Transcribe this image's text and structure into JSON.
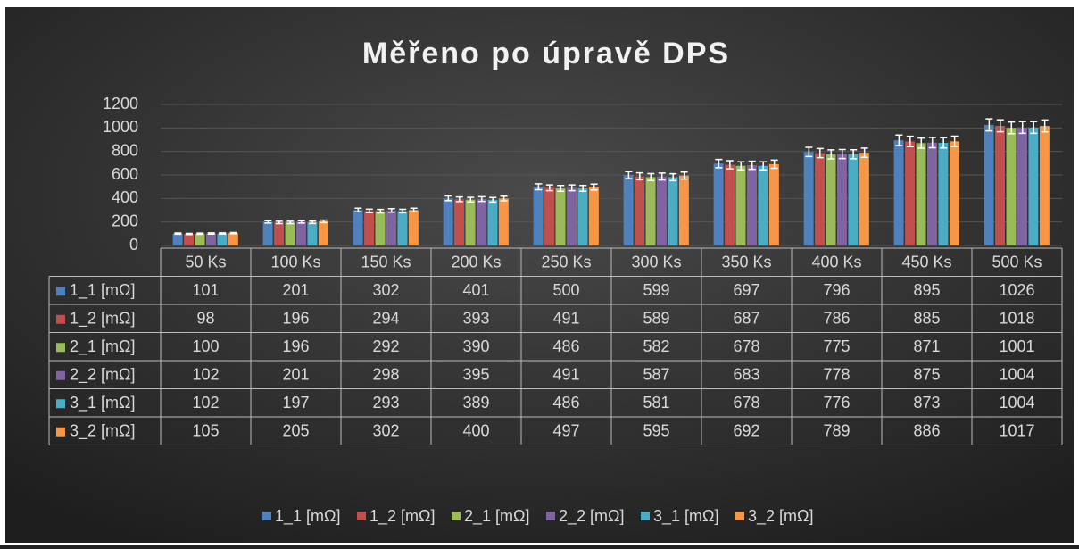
{
  "chart_data": {
    "type": "bar",
    "title": "Měřeno po úpravě DPS",
    "categories": [
      "50 Ks",
      "100 Ks",
      "150 Ks",
      "200 Ks",
      "250 Ks",
      "300 Ks",
      "350 Ks",
      "400 Ks",
      "450 Ks",
      "500 Ks"
    ],
    "series": [
      {
        "name": "1_1 [mΩ]",
        "color": "#4f81bd",
        "values": [
          101,
          201,
          302,
          401,
          500,
          599,
          697,
          796,
          895,
          1026
        ]
      },
      {
        "name": "1_2 [mΩ]",
        "color": "#c0504d",
        "values": [
          98,
          196,
          294,
          393,
          491,
          589,
          687,
          786,
          885,
          1018
        ]
      },
      {
        "name": "2_1 [mΩ]",
        "color": "#9bbb59",
        "values": [
          100,
          196,
          292,
          390,
          486,
          582,
          678,
          775,
          871,
          1001
        ]
      },
      {
        "name": "2_2 [mΩ]",
        "color": "#8064a2",
        "values": [
          102,
          201,
          298,
          395,
          491,
          587,
          683,
          778,
          875,
          1004
        ]
      },
      {
        "name": "3_1 [mΩ]",
        "color": "#4bacc6",
        "values": [
          102,
          197,
          293,
          389,
          486,
          581,
          678,
          776,
          873,
          1004
        ]
      },
      {
        "name": "3_2 [mΩ]",
        "color": "#f79646",
        "values": [
          105,
          205,
          302,
          400,
          497,
          595,
          692,
          789,
          886,
          1017
        ]
      }
    ],
    "error_bars": {
      "type": "percentage",
      "value": 5
    },
    "ylim": [
      0,
      1200
    ],
    "yticks": [
      0,
      200,
      400,
      600,
      800,
      1000,
      1200
    ],
    "grid": true,
    "data_table": true,
    "legend": "bottom"
  }
}
